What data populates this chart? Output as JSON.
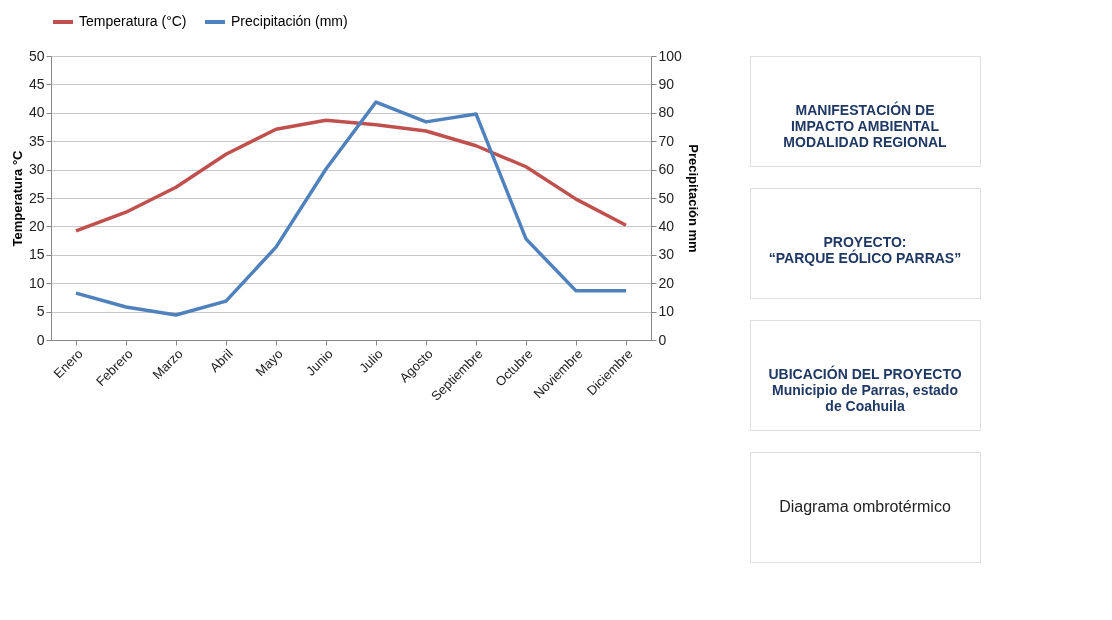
{
  "chart_data": {
    "type": "line",
    "categories": [
      "Enero",
      "Febrero",
      "Marzo",
      "Abril",
      "Mayo",
      "Junio",
      "Julio",
      "Agosto",
      "Septiembre",
      "Octubre",
      "Noviembre",
      "Diciembre"
    ],
    "series": [
      {
        "name": "Temperatura (°C)",
        "color": "#c0504d",
        "values": [
          19.2,
          22.5,
          26.9,
          32.7,
          37.1,
          38.7,
          37.9,
          36.8,
          34.2,
          30.5,
          24.8,
          20.2
        ]
      },
      {
        "name": "Precipitación (mm)",
        "color": "#4f81bd",
        "axis": "y2",
        "values": [
          16.5,
          11.6,
          8.8,
          13.7,
          32.7,
          60.2,
          83.8,
          76.8,
          79.6,
          35.6,
          17.3,
          17.3
        ]
      }
    ],
    "ylabel": "Temperatura °C",
    "y2label": "Precipitación mm",
    "ylim": [
      0,
      50
    ],
    "yticks": [
      0,
      5,
      10,
      15,
      20,
      25,
      30,
      35,
      40,
      45,
      50
    ],
    "y2lim": [
      0,
      100
    ],
    "y2ticks": [
      0,
      10,
      20,
      30,
      40,
      50,
      60,
      70,
      80,
      90,
      100
    ],
    "grid": "y",
    "legend": "top",
    "marker": "none",
    "line_style": "solid",
    "annotations": [
      "MANIFESTACIÓN DE\nIMPACTO AMBIENTAL\nMODALIDAD REGIONAL",
      "PROYECTO:\n\n“PARQUE EÓLICO PARRAS”",
      "UBICACIÓN DEL PROYECTO\nMunicipio de Parras, estado\nde Coahuila",
      "Diagrama ombrotérmico"
    ]
  }
}
